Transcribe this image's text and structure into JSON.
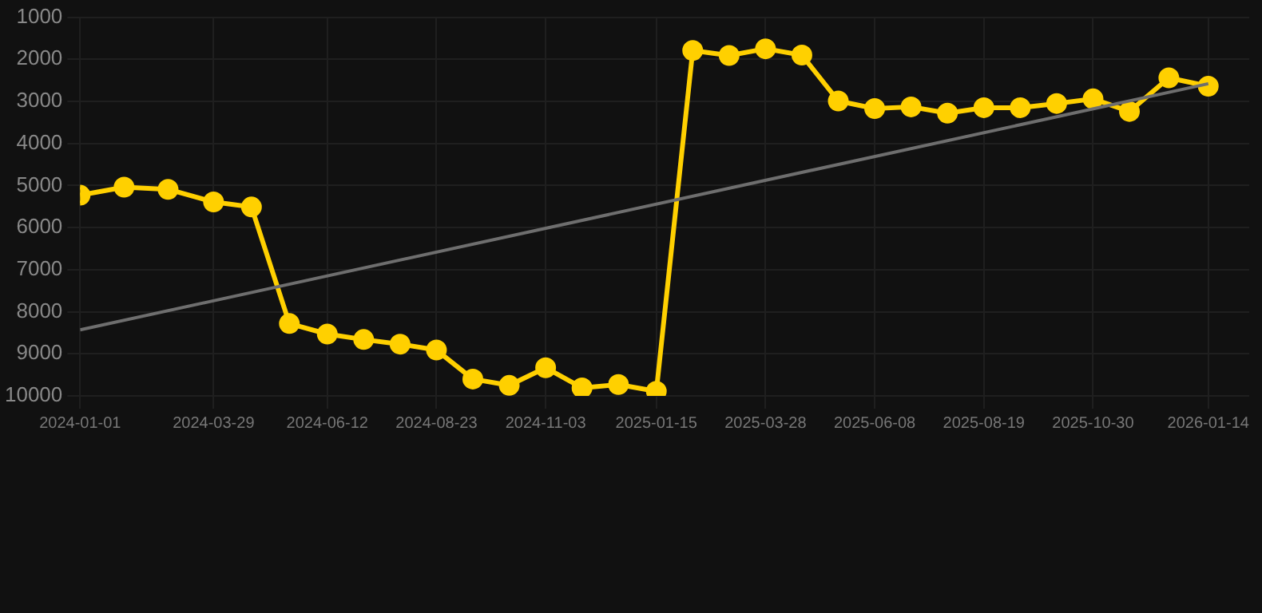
{
  "chart_data": {
    "type": "line",
    "x": [
      "2024-01-01",
      "2024-01-30",
      "2024-02-28",
      "2024-03-29",
      "2024-04-23",
      "2024-05-18",
      "2024-06-12",
      "2024-07-06",
      "2024-07-30",
      "2024-08-23",
      "2024-09-16",
      "2024-10-10",
      "2024-11-03",
      "2024-11-27",
      "2024-12-21",
      "2025-01-15",
      "2025-02-08",
      "2025-03-04",
      "2025-03-28",
      "2025-04-21",
      "2025-05-15",
      "2025-06-08",
      "2025-07-02",
      "2025-07-26",
      "2025-08-19",
      "2025-09-12",
      "2025-10-06",
      "2025-10-30",
      "2025-11-23",
      "2025-12-19",
      "2026-01-14"
    ],
    "series": [
      {
        "color": "#ffd000",
        "marker": "circle",
        "values": [
          5230,
          5040,
          5090,
          5390,
          5510,
          8280,
          8530,
          8660,
          8770,
          8910,
          9600,
          9750,
          9330,
          9810,
          9730,
          9890,
          1790,
          1910,
          1750,
          1900,
          2990,
          3170,
          3130,
          3280,
          3150,
          3150,
          3050,
          2940,
          3240,
          2440,
          2640
        ]
      },
      {
        "type": "line",
        "color": "#6e6e6e",
        "marker": "none",
        "x": [
          "2024-01-01",
          "2026-01-14"
        ],
        "values": [
          8430,
          2580
        ]
      }
    ],
    "ylim": [
      10000,
      1000
    ],
    "yticks": [
      1000,
      2000,
      3000,
      4000,
      5000,
      6000,
      7000,
      8000,
      9000,
      10000
    ],
    "xlim": [
      "2024-01-01",
      "2026-02-10"
    ],
    "xticks": [
      "2024-01-01",
      "2024-03-29",
      "2024-06-12",
      "2024-08-23",
      "2024-11-03",
      "2025-01-15",
      "2025-03-28",
      "2025-06-08",
      "2025-08-19",
      "2025-10-30",
      "2026-01-14"
    ],
    "grid": true,
    "legend": false
  }
}
